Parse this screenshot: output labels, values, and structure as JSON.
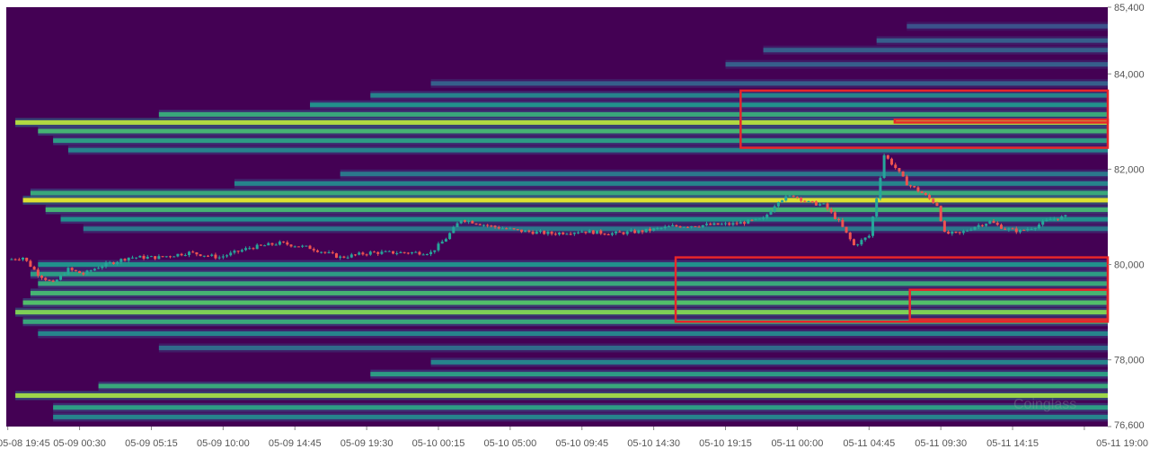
{
  "chart_data": {
    "type": "heatmap",
    "subtype": "liquidation-heatmap-with-candlesticks",
    "title": "",
    "xlabel": "",
    "ylabel": "",
    "ylim": [
      76600,
      85400
    ],
    "y_ticks": [
      "85,400",
      "84,000",
      "82,000",
      "80,000",
      "78,000",
      "76,600"
    ],
    "y_tick_values": [
      85400,
      84000,
      82000,
      80000,
      78000,
      76600
    ],
    "x_ticks": [
      "05-08 19:45",
      "05-09 00:30",
      "05-09 05:15",
      "05-09 10:00",
      "05-09 14:45",
      "05-09 19:30",
      "05-10 00:15",
      "05-10 05:00",
      "05-10 09:45",
      "05-10 14:30",
      "05-10 19:15",
      "05-11 00:00",
      "05-11 04:45",
      "05-11 09:30",
      "05-11 14:15",
      "05-11 19:00"
    ],
    "x_range_hours": [
      -0.1,
      72.8
    ],
    "watermark": "Coinglass",
    "colors": {
      "background": "#440154",
      "up_candle": "#26a69a",
      "down_candle": "#ef5350",
      "highlight_box": "#e8262a",
      "scale": [
        "#440154",
        "#3b528b",
        "#21918c",
        "#5ec962",
        "#fde725"
      ]
    },
    "bands": [
      {
        "price": 85000,
        "start": 59.5,
        "intensity": 0.25
      },
      {
        "price": 84700,
        "start": 57.5,
        "intensity": 0.3
      },
      {
        "price": 84500,
        "start": 50,
        "intensity": 0.3
      },
      {
        "price": 84200,
        "start": 47.5,
        "intensity": 0.3
      },
      {
        "price": 83800,
        "start": 28,
        "intensity": 0.3
      },
      {
        "price": 83550,
        "start": 24,
        "intensity": 0.45
      },
      {
        "price": 83350,
        "start": 20,
        "intensity": 0.5
      },
      {
        "price": 83150,
        "start": 10,
        "intensity": 0.6
      },
      {
        "price": 82980,
        "start": 0.5,
        "intensity": 0.88
      },
      {
        "price": 82800,
        "start": 2,
        "intensity": 0.65
      },
      {
        "price": 82600,
        "start": 3,
        "intensity": 0.55
      },
      {
        "price": 82400,
        "start": 4,
        "intensity": 0.45
      },
      {
        "price": 81900,
        "start": 22,
        "intensity": 0.4
      },
      {
        "price": 81700,
        "start": 15,
        "intensity": 0.45
      },
      {
        "price": 81500,
        "start": 1.5,
        "intensity": 0.6
      },
      {
        "price": 81350,
        "start": 1,
        "intensity": 0.95
      },
      {
        "price": 81150,
        "start": 2.5,
        "intensity": 0.65
      },
      {
        "price": 80950,
        "start": 3.5,
        "intensity": 0.5
      },
      {
        "price": 80750,
        "start": 5,
        "intensity": 0.4
      },
      {
        "price": 80000,
        "start": 2,
        "intensity": 0.5
      },
      {
        "price": 79800,
        "start": 1.5,
        "intensity": 0.55
      },
      {
        "price": 79600,
        "start": 2,
        "intensity": 0.6
      },
      {
        "price": 79400,
        "start": 1.5,
        "intensity": 0.65
      },
      {
        "price": 79200,
        "start": 1,
        "intensity": 0.7
      },
      {
        "price": 79000,
        "start": 0.5,
        "intensity": 0.8
      },
      {
        "price": 78800,
        "start": 1,
        "intensity": 0.6
      },
      {
        "price": 78550,
        "start": 2,
        "intensity": 0.45
      },
      {
        "price": 78250,
        "start": 10,
        "intensity": 0.35
      },
      {
        "price": 77950,
        "start": 28,
        "intensity": 0.45
      },
      {
        "price": 77700,
        "start": 24,
        "intensity": 0.55
      },
      {
        "price": 77450,
        "start": 6,
        "intensity": 0.6
      },
      {
        "price": 77250,
        "start": 0.5,
        "intensity": 0.85
      },
      {
        "price": 77000,
        "start": 3,
        "intensity": 0.55
      },
      {
        "price": 76800,
        "start": 3,
        "intensity": 0.45
      }
    ],
    "price_path": [
      [
        0,
        80100
      ],
      [
        1,
        80150
      ],
      [
        2,
        79800
      ],
      [
        3,
        79600
      ],
      [
        4,
        79900
      ],
      [
        5,
        79800
      ],
      [
        6,
        79950
      ],
      [
        8,
        80150
      ],
      [
        10,
        80150
      ],
      [
        12,
        80250
      ],
      [
        14,
        80150
      ],
      [
        16,
        80350
      ],
      [
        18,
        80450
      ],
      [
        20,
        80350
      ],
      [
        22,
        80150
      ],
      [
        24,
        80250
      ],
      [
        26,
        80250
      ],
      [
        28,
        80250
      ],
      [
        29,
        80550
      ],
      [
        30,
        80950
      ],
      [
        32,
        80800
      ],
      [
        34,
        80700
      ],
      [
        36,
        80650
      ],
      [
        38,
        80700
      ],
      [
        40,
        80650
      ],
      [
        42,
        80700
      ],
      [
        44,
        80800
      ],
      [
        48,
        80850
      ],
      [
        50,
        80950
      ],
      [
        51,
        81350
      ],
      [
        52,
        81450
      ],
      [
        53,
        81300
      ],
      [
        54,
        81250
      ],
      [
        55,
        80900
      ],
      [
        56,
        80400
      ],
      [
        57,
        80600
      ],
      [
        57.5,
        81400
      ],
      [
        58,
        82300
      ],
      [
        58.7,
        82050
      ],
      [
        59.5,
        81700
      ],
      [
        60.5,
        81500
      ],
      [
        61.5,
        81250
      ],
      [
        62,
        80650
      ],
      [
        63,
        80650
      ],
      [
        64,
        80800
      ],
      [
        65,
        80900
      ],
      [
        66,
        80750
      ],
      [
        67,
        80700
      ],
      [
        68,
        80800
      ],
      [
        69,
        80950
      ],
      [
        70,
        81000
      ]
    ],
    "highlight_boxes": [
      {
        "time": [
          48.5,
          72.8
        ],
        "price": [
          82450,
          83650
        ]
      },
      {
        "time": [
          58.7,
          72.8
        ],
        "price": [
          82980,
          83040
        ]
      },
      {
        "time": [
          44.2,
          72.8
        ],
        "price": [
          78800,
          80150
        ]
      },
      {
        "time": [
          59.7,
          72.8
        ],
        "price": [
          78850,
          79470
        ]
      }
    ]
  }
}
